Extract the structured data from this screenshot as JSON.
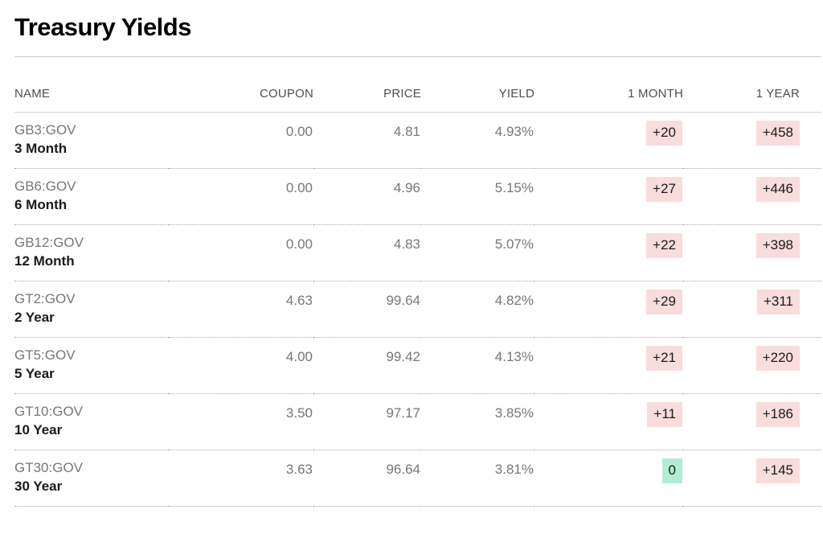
{
  "page": {
    "title": "Treasury Yields"
  },
  "colors": {
    "positive_change_badge_bg": "#f9dcdc",
    "zero_change_badge_bg": "#b2edd3",
    "muted_text": "#777777",
    "header_text": "#4e4e4e",
    "primary_text": "#1a1a1a"
  },
  "table": {
    "columns": [
      {
        "key": "name",
        "label": "NAME"
      },
      {
        "key": "coupon",
        "label": "COUPON"
      },
      {
        "key": "price",
        "label": "PRICE"
      },
      {
        "key": "yield",
        "label": "YIELD"
      },
      {
        "key": "one_month",
        "label": "1 MONTH"
      },
      {
        "key": "one_year",
        "label": "1 YEAR"
      }
    ],
    "rows": [
      {
        "ticker": "GB3:GOV",
        "tenor": "3 Month",
        "coupon": "0.00",
        "price": "4.81",
        "yield": "4.93%",
        "one_month": {
          "text": "+20",
          "direction": "up"
        },
        "one_year": {
          "text": "+458",
          "direction": "up"
        }
      },
      {
        "ticker": "GB6:GOV",
        "tenor": "6 Month",
        "coupon": "0.00",
        "price": "4.96",
        "yield": "5.15%",
        "one_month": {
          "text": "+27",
          "direction": "up"
        },
        "one_year": {
          "text": "+446",
          "direction": "up"
        }
      },
      {
        "ticker": "GB12:GOV",
        "tenor": "12 Month",
        "coupon": "0.00",
        "price": "4.83",
        "yield": "5.07%",
        "one_month": {
          "text": "+22",
          "direction": "up"
        },
        "one_year": {
          "text": "+398",
          "direction": "up"
        }
      },
      {
        "ticker": "GT2:GOV",
        "tenor": "2 Year",
        "coupon": "4.63",
        "price": "99.64",
        "yield": "4.82%",
        "one_month": {
          "text": "+29",
          "direction": "up"
        },
        "one_year": {
          "text": "+311",
          "direction": "up"
        }
      },
      {
        "ticker": "GT5:GOV",
        "tenor": "5 Year",
        "coupon": "4.00",
        "price": "99.42",
        "yield": "4.13%",
        "one_month": {
          "text": "+21",
          "direction": "up"
        },
        "one_year": {
          "text": "+220",
          "direction": "up"
        }
      },
      {
        "ticker": "GT10:GOV",
        "tenor": "10 Year",
        "coupon": "3.50",
        "price": "97.17",
        "yield": "3.85%",
        "one_month": {
          "text": "+11",
          "direction": "up"
        },
        "one_year": {
          "text": "+186",
          "direction": "up"
        }
      },
      {
        "ticker": "GT30:GOV",
        "tenor": "30 Year",
        "coupon": "3.63",
        "price": "96.64",
        "yield": "3.81%",
        "one_month": {
          "text": "0",
          "direction": "flat"
        },
        "one_year": {
          "text": "+145",
          "direction": "up"
        }
      }
    ]
  }
}
